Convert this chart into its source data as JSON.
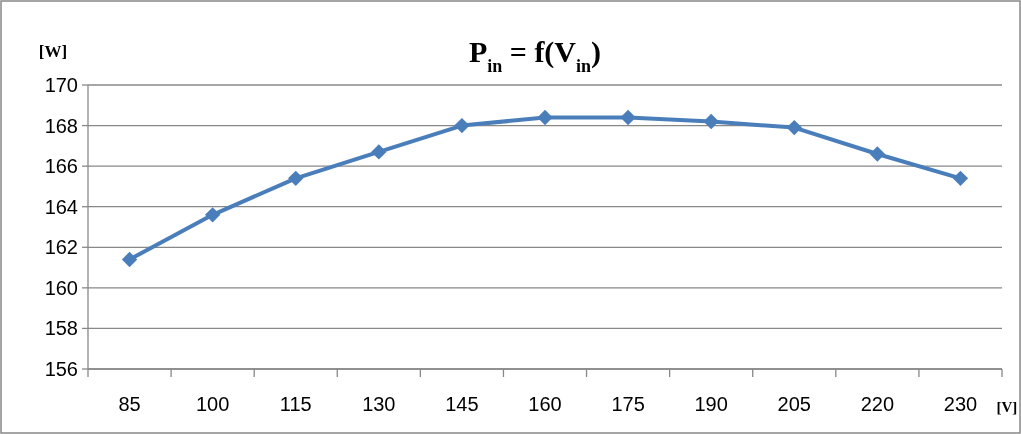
{
  "chart_data": {
    "type": "line",
    "title": "P$_{in}$ = f(V$_{in}$)",
    "xlabel": "[V]",
    "ylabel": "[W]",
    "categories": [
      "85",
      "100",
      "115",
      "130",
      "145",
      "160",
      "175",
      "190",
      "205",
      "220",
      "230"
    ],
    "series": [
      {
        "color": "#4a7ebb",
        "values": [
          161.4,
          163.6,
          165.4,
          166.7,
          168.0,
          168.4,
          168.4,
          168.2,
          167.9,
          166.6,
          165.4
        ]
      }
    ],
    "ylim": [
      156,
      170
    ],
    "yticks": [
      156,
      158,
      160,
      162,
      164,
      166,
      168,
      170
    ],
    "grid": "y",
    "marker": "diamond",
    "line_style": "solid"
  }
}
